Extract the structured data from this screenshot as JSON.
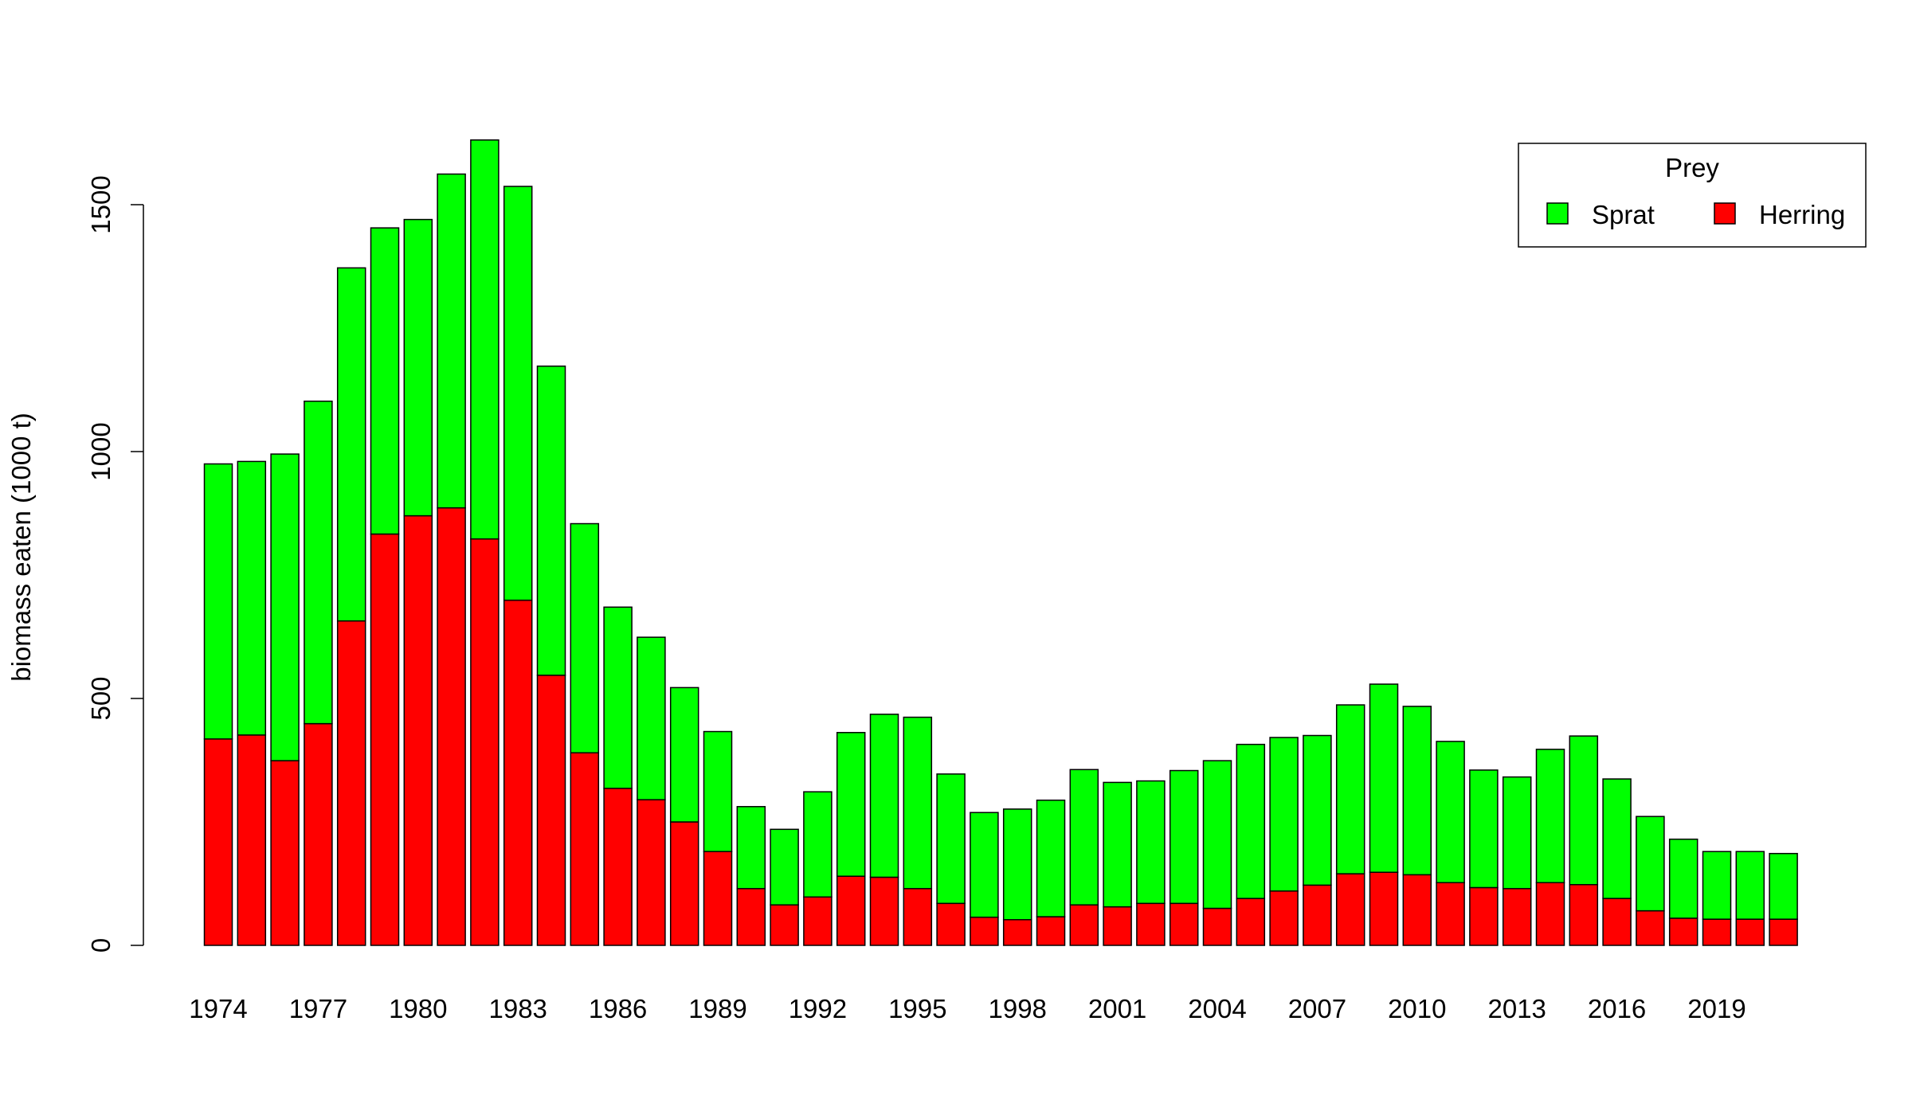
{
  "colors": {
    "Sprat": "#00ff00",
    "Herring": "#ff0000"
  },
  "chart_data": {
    "type": "bar",
    "stacked": true,
    "title": "",
    "xlabel": "",
    "ylabel": "biomass eaten (1000 t)",
    "ylim": [
      0,
      1650
    ],
    "y_ticks": [
      0,
      500,
      1000,
      1500
    ],
    "categories": [
      1974,
      1975,
      1976,
      1977,
      1978,
      1979,
      1980,
      1981,
      1982,
      1983,
      1984,
      1985,
      1986,
      1987,
      1988,
      1989,
      1990,
      1991,
      1992,
      1993,
      1994,
      1995,
      1996,
      1997,
      1998,
      1999,
      2000,
      2001,
      2002,
      2003,
      2004,
      2005,
      2006,
      2007,
      2008,
      2009,
      2010,
      2011,
      2012,
      2013,
      2014,
      2015,
      2016,
      2017,
      2018,
      2019,
      2020,
      2021
    ],
    "x_tick_labels": [
      1974,
      1977,
      1980,
      1983,
      1986,
      1989,
      1992,
      1995,
      1998,
      2001,
      2004,
      2007,
      2010,
      2013,
      2016,
      2019
    ],
    "legend": {
      "title": "Prey",
      "position": "top-right",
      "entries": [
        "Sprat",
        "Herring"
      ]
    },
    "series": [
      {
        "name": "Herring",
        "values": [
          418,
          426,
          374,
          449,
          657,
          833,
          870,
          886,
          823,
          699,
          547,
          390,
          318,
          295,
          250,
          190,
          115,
          82,
          98,
          140,
          138,
          115,
          85,
          57,
          52,
          58,
          82,
          78,
          85,
          85,
          75,
          95,
          110,
          122,
          145,
          148,
          143,
          127,
          117,
          115,
          127,
          123,
          95,
          70,
          55,
          53,
          53,
          53
        ]
      },
      {
        "name": "Sprat",
        "values": [
          557,
          554,
          621,
          653,
          715,
          620,
          600,
          676,
          808,
          838,
          626,
          464,
          367,
          329,
          272,
          243,
          166,
          153,
          213,
          291,
          330,
          347,
          262,
          212,
          224,
          236,
          274,
          252,
          248,
          269,
          299,
          312,
          311,
          303,
          342,
          381,
          341,
          286,
          238,
          226,
          270,
          301,
          242,
          191,
          160,
          137,
          137,
          133
        ]
      }
    ]
  }
}
